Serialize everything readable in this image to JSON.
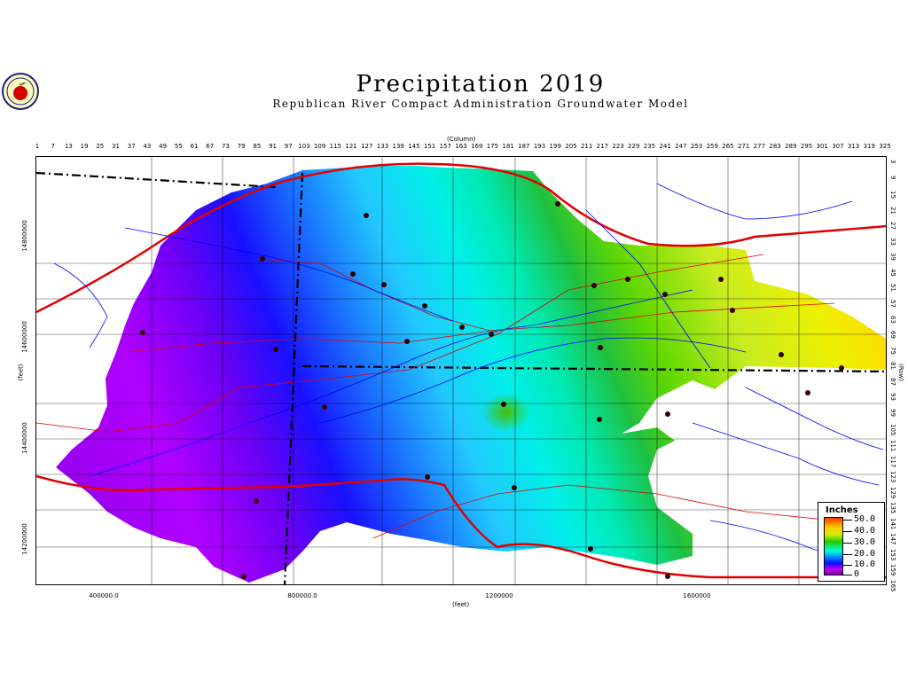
{
  "title": "Precipitation 2019",
  "subtitle": "Republican River Compact Administration Groundwater Model",
  "logo": {
    "icon": "apple-seal-icon"
  },
  "axes": {
    "column_title": "(Column)",
    "row_title": "(Row)",
    "x_title": "(feet)",
    "y_title": "(feet)",
    "column_ticks": [
      "1",
      "7",
      "13",
      "19",
      "25",
      "31",
      "37",
      "43",
      "49",
      "55",
      "61",
      "67",
      "73",
      "79",
      "85",
      "91",
      "97",
      "103",
      "109",
      "115",
      "121",
      "127",
      "133",
      "139",
      "145",
      "151",
      "157",
      "163",
      "169",
      "175",
      "181",
      "187",
      "193",
      "199",
      "205",
      "211",
      "217",
      "223",
      "229",
      "235",
      "241",
      "247",
      "253",
      "259",
      "265",
      "271",
      "277",
      "283",
      "289",
      "295",
      "301",
      "307",
      "313",
      "319",
      "325"
    ],
    "row_ticks": [
      "3",
      "9",
      "15",
      "21",
      "27",
      "33",
      "39",
      "45",
      "51",
      "57",
      "63",
      "69",
      "75",
      "81",
      "87",
      "93",
      "99",
      "105",
      "111",
      "117",
      "123",
      "129",
      "135",
      "141",
      "147",
      "153",
      "159",
      "165"
    ],
    "x_ticks": [
      "400000.0",
      "800000.0",
      "1200000",
      "1600000"
    ],
    "y_ticks": [
      "14800000",
      "14600000",
      "14400000",
      "14200000"
    ]
  },
  "legend": {
    "title": "Inches",
    "labels": [
      "50.0",
      "40.0",
      "30.0",
      "20.0",
      "10.0",
      "0"
    ]
  }
}
